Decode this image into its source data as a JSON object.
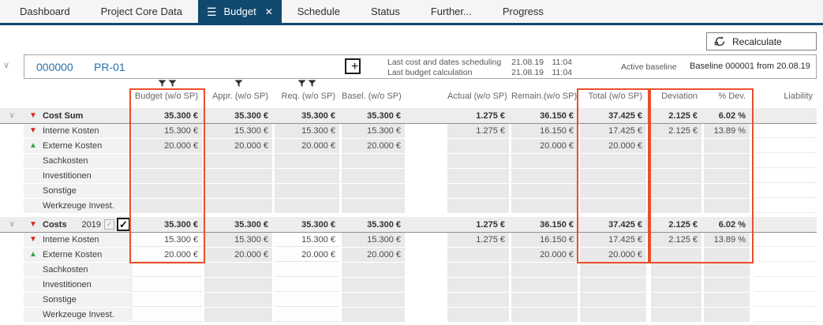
{
  "icons": {
    "hamburger": "☰",
    "close": "✕",
    "chevron_down": "∨",
    "triangle_down": "▼",
    "triangle_up": "▲",
    "check": "✓",
    "plus": "+"
  },
  "tabs": [
    {
      "label": "Dashboard",
      "active": false
    },
    {
      "label": "Project Core Data",
      "active": false
    },
    {
      "label": "Budget",
      "active": true
    },
    {
      "label": "Schedule",
      "active": false
    },
    {
      "label": "Status",
      "active": false
    },
    {
      "label": "Further...",
      "active": false
    },
    {
      "label": "Progress",
      "active": false
    }
  ],
  "toolbar": {
    "recalculate_label": "Recalculate"
  },
  "project_bar": {
    "number": "000000",
    "code": "PR-01",
    "scheduling": {
      "label": "Last cost and dates scheduling",
      "date": "21.08.19",
      "time": "11:04"
    },
    "budget_calc": {
      "label": "Last budget calculation",
      "date": "21.08.19",
      "time": "11:04"
    },
    "active_baseline_label": "Active baseline",
    "baseline_value": "Baseline 000001 from 20.08.19"
  },
  "table": {
    "columns": [
      {
        "key": "budget",
        "label": "Budget (w/o SP)",
        "filters": 2
      },
      {
        "key": "appr",
        "label": "Appr. (w/o SP)",
        "filters": 1
      },
      {
        "key": "req",
        "label": "Req. (w/o SP)",
        "filters": 2
      },
      {
        "key": "basel",
        "label": "Basel. (w/o SP)",
        "filters": 0
      },
      {
        "key": "actual",
        "label": "Actual (w/o SP)",
        "filters": 0
      },
      {
        "key": "remain",
        "label": "Remain.(w/o SP)",
        "filters": 0
      },
      {
        "key": "total",
        "label": "Total (w/o SP)",
        "filters": 0
      },
      {
        "key": "deviation",
        "label": "Deviation",
        "filters": 0
      },
      {
        "key": "pdev",
        "label": "% Dev.",
        "filters": 0
      },
      {
        "key": "liability",
        "label": "Liability",
        "filters": 0
      }
    ],
    "groups": [
      {
        "editable_cols": [],
        "header": {
          "label": "Cost Sum",
          "indicator": "down",
          "expanded": true,
          "values": {
            "budget": "35.300 €",
            "appr": "35.300 €",
            "req": "35.300 €",
            "basel": "35.300 €",
            "actual": "1.275 €",
            "remain": "36.150 €",
            "total": "37.425 €",
            "deviation": "2.125 €",
            "pdev": "6.02 %",
            "liability": ""
          }
        },
        "rows": [
          {
            "label": "Interne Kosten",
            "indicator": "down",
            "values": {
              "budget": "15.300 €",
              "appr": "15.300 €",
              "req": "15.300 €",
              "basel": "15.300 €",
              "actual": "1.275 €",
              "remain": "16.150 €",
              "total": "17.425 €",
              "deviation": "2.125 €",
              "pdev": "13.89 %",
              "liability": ""
            }
          },
          {
            "label": "Externe Kosten",
            "indicator": "up",
            "values": {
              "budget": "20.000 €",
              "appr": "20.000 €",
              "req": "20.000 €",
              "basel": "20.000 €",
              "actual": "",
              "remain": "20.000 €",
              "total": "20.000 €",
              "deviation": "",
              "pdev": "",
              "liability": ""
            }
          },
          {
            "label": "Sachkosten",
            "indicator": null,
            "values": {}
          },
          {
            "label": "Investitionen",
            "indicator": null,
            "values": {}
          },
          {
            "label": "Sonstige",
            "indicator": null,
            "values": {}
          },
          {
            "label": "Werkzeuge Invest.",
            "indicator": null,
            "values": {}
          }
        ]
      },
      {
        "editable_cols": [
          "budget",
          "req"
        ],
        "header": {
          "label": "Costs",
          "year": "2019",
          "indicator": "down",
          "expanded": true,
          "checkbox_small_checked": true,
          "checkbox_big_checked": true,
          "values": {
            "budget": "35.300 €",
            "appr": "35.300 €",
            "req": "35.300 €",
            "basel": "35.300 €",
            "actual": "1.275 €",
            "remain": "36.150 €",
            "total": "37.425 €",
            "deviation": "2.125 €",
            "pdev": "6.02 %",
            "liability": ""
          }
        },
        "rows": [
          {
            "label": "Interne Kosten",
            "indicator": "down",
            "values": {
              "budget": "15.300 €",
              "appr": "15.300 €",
              "req": "15.300 €",
              "basel": "15.300 €",
              "actual": "1.275 €",
              "remain": "16.150 €",
              "total": "17.425 €",
              "deviation": "2.125 €",
              "pdev": "13.89 %",
              "liability": ""
            }
          },
          {
            "label": "Externe Kosten",
            "indicator": "up",
            "values": {
              "budget": "20.000 €",
              "appr": "20.000 €",
              "req": "20.000 €",
              "basel": "20.000 €",
              "actual": "",
              "remain": "20.000 €",
              "total": "20.000 €",
              "deviation": "",
              "pdev": "",
              "liability": ""
            }
          },
          {
            "label": "Sachkosten",
            "indicator": null,
            "values": {}
          },
          {
            "label": "Investitionen",
            "indicator": null,
            "values": {}
          },
          {
            "label": "Sonstige",
            "indicator": null,
            "values": {}
          },
          {
            "label": "Werkzeuge Invest.",
            "indicator": null,
            "values": {}
          }
        ]
      }
    ],
    "highlight_color": "#e8502a"
  }
}
